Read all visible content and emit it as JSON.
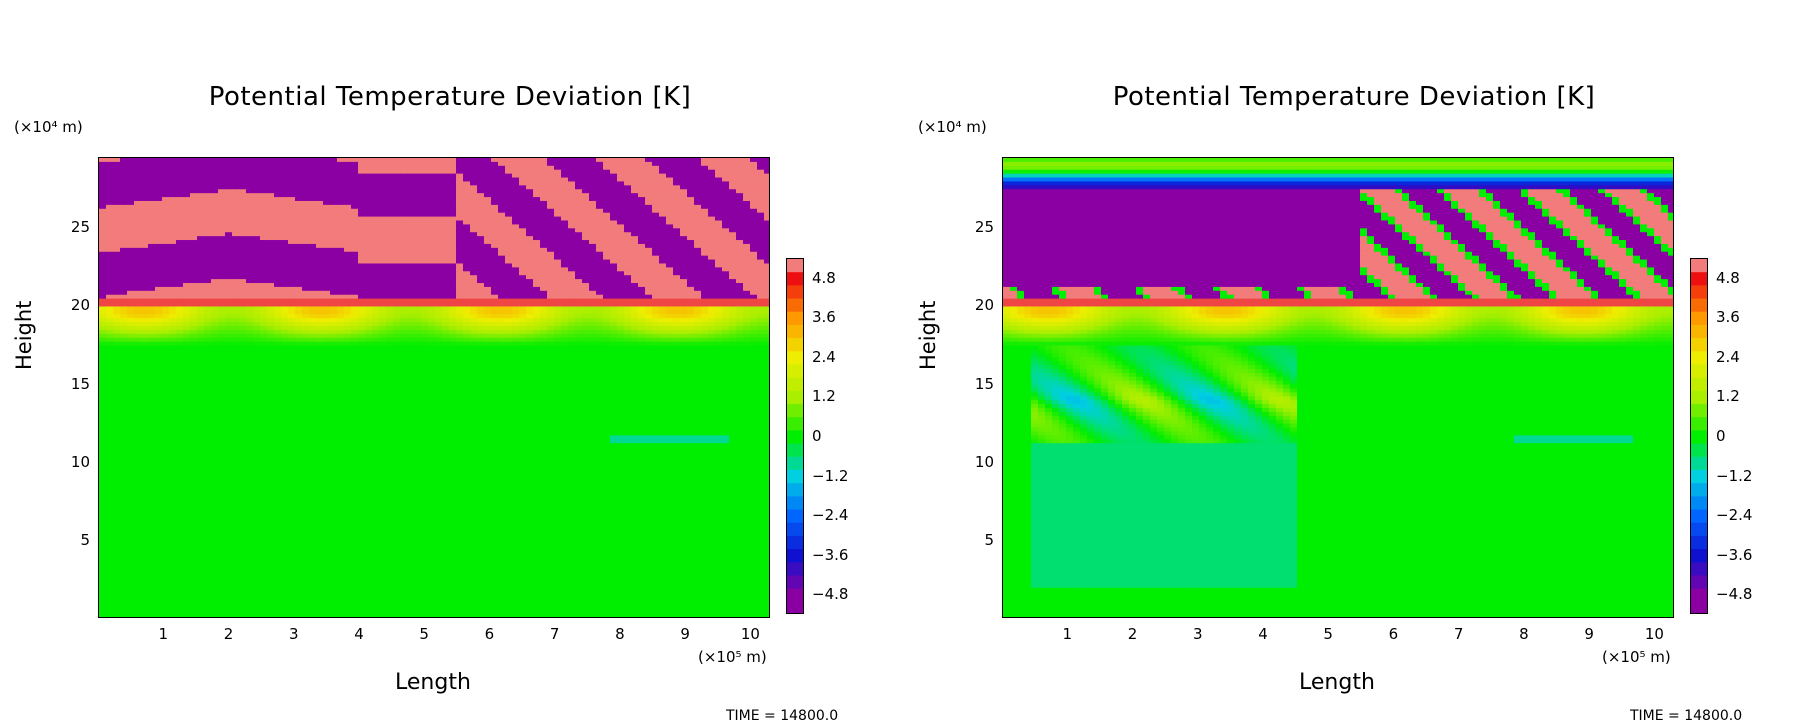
{
  "chart_data": [
    {
      "type": "heatmap",
      "title": "Potential Temperature Deviation [K]",
      "xlabel": "Length",
      "ylabel": "Height",
      "x_unit": "(×10⁵ m)",
      "y_unit": "(×10⁴ m)",
      "x_ticks": [
        "1",
        "2",
        "3",
        "4",
        "5",
        "6",
        "7",
        "8",
        "9",
        "10"
      ],
      "y_ticks": [
        "5",
        "10",
        "15",
        "20",
        "25"
      ],
      "xlim": [
        0,
        10.3
      ],
      "ylim": [
        0,
        29.5
      ],
      "colorbar_ticks": [
        "4.8",
        "3.6",
        "2.4",
        "1.2",
        "0",
        "−1.2",
        "−2.4",
        "−3.6",
        "−4.8"
      ],
      "colorbar_range": [
        -5.4,
        5.4
      ],
      "time_label": "TIME = 14800.0",
      "fields": {
        "lower_value": 0.0,
        "tropopause_height": 20,
        "warm_band_value": 3.0,
        "upper_pattern": "alternating bands of ≤−4.8 and ≥4.8"
      }
    },
    {
      "type": "heatmap",
      "title": "Potential Temperature Deviation [K]",
      "xlabel": "Length",
      "ylabel": "Height",
      "x_unit": "(×10⁵ m)",
      "y_unit": "(×10⁴ m)",
      "x_ticks": [
        "1",
        "2",
        "3",
        "4",
        "5",
        "6",
        "7",
        "8",
        "9",
        "10"
      ],
      "y_ticks": [
        "5",
        "10",
        "15",
        "20",
        "25"
      ],
      "xlim": [
        0,
        10.3
      ],
      "ylim": [
        0,
        29.5
      ],
      "colorbar_ticks": [
        "4.8",
        "3.6",
        "2.4",
        "1.2",
        "0",
        "−1.2",
        "−2.4",
        "−3.6",
        "−4.8"
      ],
      "colorbar_range": [
        -5.4,
        5.4
      ],
      "time_label": "TIME = 14800.0",
      "fields": {
        "lower_value": 0.0,
        "tropopause_height": 20,
        "warm_band_value": 3.0,
        "upper_pattern": "large region ≤−4.8 above 21 with wave trains"
      }
    }
  ],
  "colors": {
    "neg_max": "#8b00a3",
    "neg": "#1010d0",
    "cyan": "#00d0e0",
    "zero": "#00ee00",
    "yellow": "#eeee00",
    "orange": "#ff9900",
    "red": "#ee1010",
    "pos_max": "#f4b0b0"
  }
}
